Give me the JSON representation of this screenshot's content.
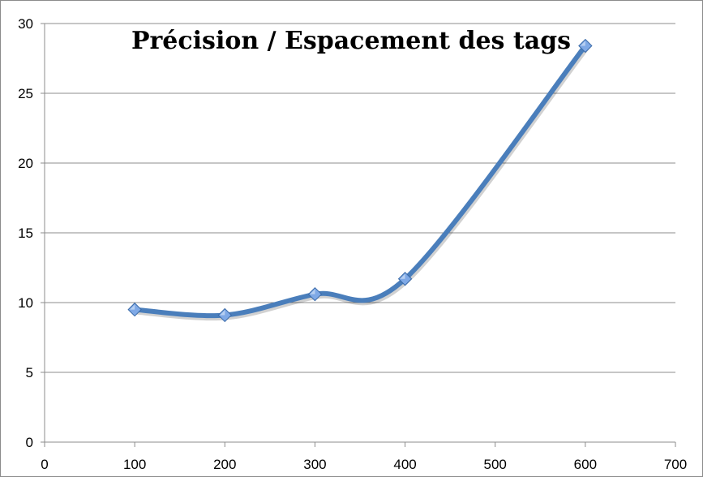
{
  "chart_data": {
    "type": "line",
    "title": "Précision / Espacement des tags",
    "xlabel": "",
    "ylabel": "",
    "xlim": [
      0,
      700
    ],
    "ylim": [
      0,
      30
    ],
    "x_ticks": [
      0,
      100,
      200,
      300,
      400,
      500,
      600,
      700
    ],
    "y_ticks": [
      0,
      5,
      10,
      15,
      20,
      25,
      30
    ],
    "grid": "horizontal",
    "legend": "none",
    "series": [
      {
        "name": "",
        "color": "#4a7ebb",
        "marker": "diamond",
        "smooth": true,
        "x": [
          100,
          200,
          300,
          400,
          600
        ],
        "y": [
          9.5,
          9.1,
          10.6,
          11.7,
          28.4
        ]
      }
    ]
  }
}
